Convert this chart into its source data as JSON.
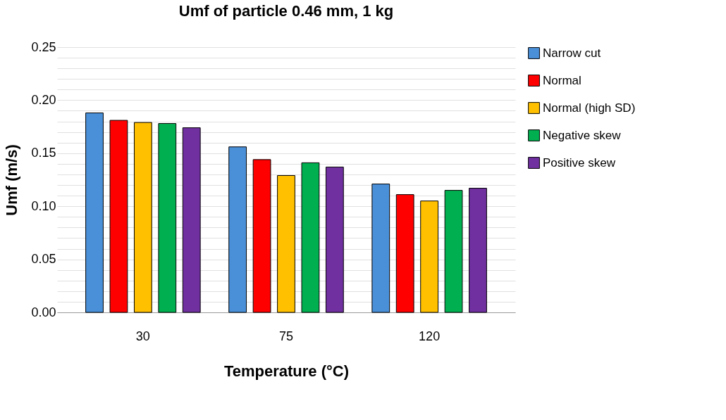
{
  "chart_data": {
    "type": "bar",
    "title": "Umf of particle 0.46 mm, 1 kg",
    "xlabel": "Temperature (°C)",
    "ylabel": "Umf (m/s)",
    "categories": [
      "30",
      "75",
      "120"
    ],
    "series": [
      {
        "name": "Narrow cut",
        "color": "#4a90d9",
        "values": [
          0.188,
          0.156,
          0.121
        ]
      },
      {
        "name": "Normal",
        "color": "#ff0000",
        "values": [
          0.181,
          0.144,
          0.111
        ]
      },
      {
        "name": "Normal (high SD)",
        "color": "#ffc000",
        "values": [
          0.179,
          0.129,
          0.105
        ]
      },
      {
        "name": "Negative skew",
        "color": "#00b050",
        "values": [
          0.178,
          0.141,
          0.115
        ]
      },
      {
        "name": "Positive skew",
        "color": "#7030a0",
        "values": [
          0.174,
          0.137,
          0.117
        ]
      }
    ],
    "ylim": [
      0,
      0.25
    ],
    "yticks": [
      {
        "value": 0,
        "label": "0.00"
      },
      {
        "value": 0.01,
        "label": null
      },
      {
        "value": 0.02,
        "label": null
      },
      {
        "value": 0.03,
        "label": null
      },
      {
        "value": 0.04,
        "label": null
      },
      {
        "value": 0.05,
        "label": "0.05"
      },
      {
        "value": 0.06,
        "label": null
      },
      {
        "value": 0.07,
        "label": null
      },
      {
        "value": 0.08,
        "label": null
      },
      {
        "value": 0.09,
        "label": null
      },
      {
        "value": 0.1,
        "label": "0.10"
      },
      {
        "value": 0.11,
        "label": null
      },
      {
        "value": 0.12,
        "label": null
      },
      {
        "value": 0.13,
        "label": null
      },
      {
        "value": 0.14,
        "label": null
      },
      {
        "value": 0.15,
        "label": "0.15"
      },
      {
        "value": 0.16,
        "label": null
      },
      {
        "value": 0.17,
        "label": null
      },
      {
        "value": 0.18,
        "label": null
      },
      {
        "value": 0.19,
        "label": null
      },
      {
        "value": 0.2,
        "label": "0.20"
      },
      {
        "value": 0.21,
        "label": null
      },
      {
        "value": 0.22,
        "label": null
      },
      {
        "value": 0.23,
        "label": null
      },
      {
        "value": 0.24,
        "label": null
      },
      {
        "value": 0.25,
        "label": "0.25"
      }
    ],
    "grid": "y",
    "legend": "right"
  }
}
